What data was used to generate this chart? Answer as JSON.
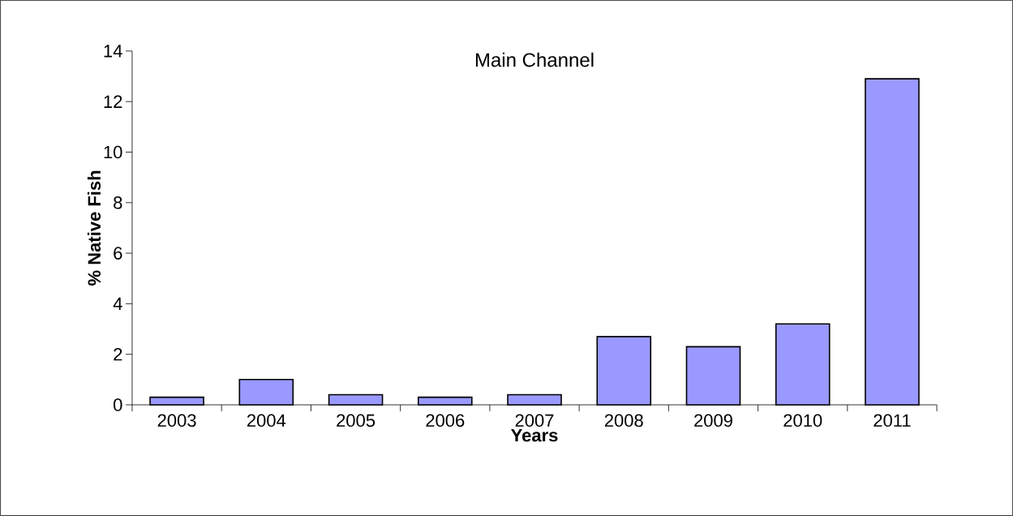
{
  "chart_data": {
    "type": "bar",
    "title": "Main Channel",
    "xlabel": "Years",
    "ylabel": "% Native Fish",
    "categories": [
      "2003",
      "2004",
      "2005",
      "2006",
      "2007",
      "2008",
      "2009",
      "2010",
      "2011"
    ],
    "values": [
      0.3,
      1.0,
      0.4,
      0.3,
      0.4,
      2.7,
      2.3,
      3.2,
      12.9
    ],
    "color": "#9999ff",
    "ylim": [
      0,
      14
    ],
    "yticks": [
      0,
      2,
      4,
      6,
      8,
      10,
      12,
      14
    ],
    "grid": false
  }
}
